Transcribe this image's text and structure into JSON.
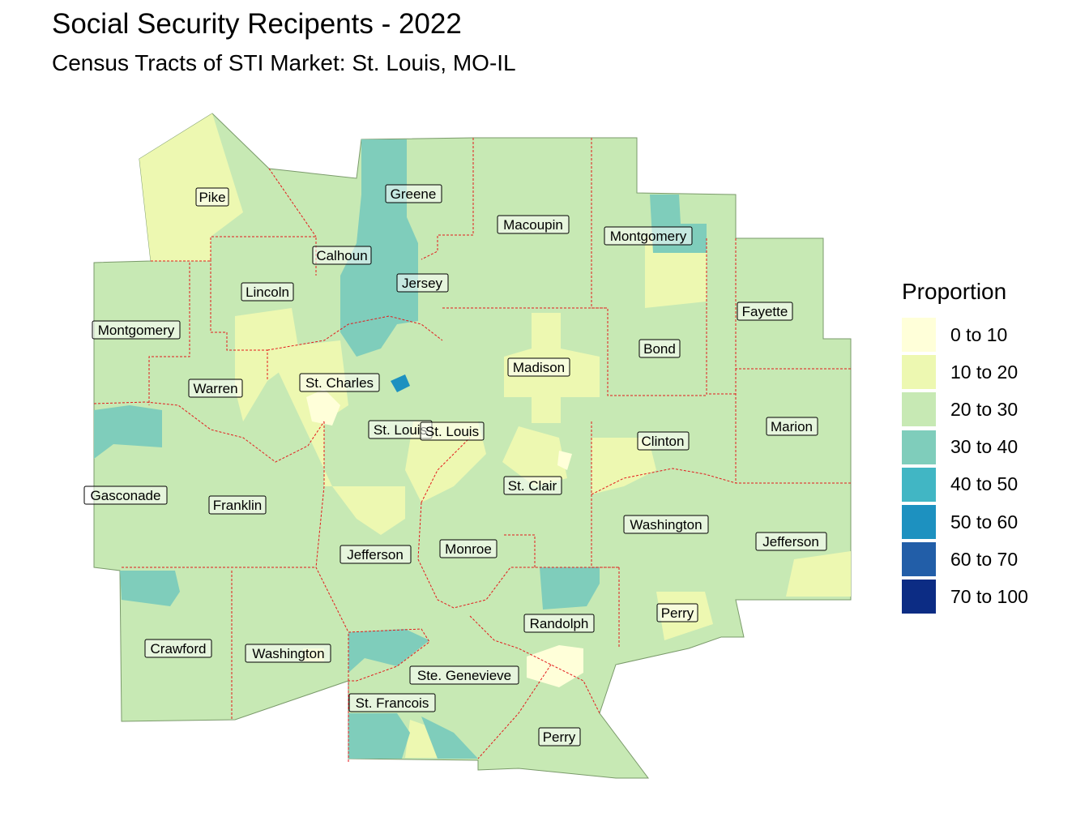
{
  "title": "Social Security Recipents - 2022",
  "subtitle": "Census Tracts of STI Market: St. Louis, MO-IL",
  "legend": {
    "title": "Proportion",
    "items": [
      {
        "label": "0 to 10",
        "color": "#ffffd9"
      },
      {
        "label": "10 to 20",
        "color": "#edf8b1"
      },
      {
        "label": "20 to 30",
        "color": "#c7e9b4"
      },
      {
        "label": "30 to 40",
        "color": "#7fcdbb"
      },
      {
        "label": "40 to 50",
        "color": "#41b6c4"
      },
      {
        "label": "50 to 60",
        "color": "#1d91c0"
      },
      {
        "label": "60 to 70",
        "color": "#225ea8"
      },
      {
        "label": "70 to 100",
        "color": "#0c2c84"
      }
    ]
  },
  "border_color": "#e31a1c",
  "counties": [
    {
      "name": "Pike"
    },
    {
      "name": "Greene"
    },
    {
      "name": "Macoupin"
    },
    {
      "name": "Montgomery"
    },
    {
      "name": "Calhoun"
    },
    {
      "name": "Lincoln"
    },
    {
      "name": "Jersey"
    },
    {
      "name": "Fayette"
    },
    {
      "name": "Montgomery"
    },
    {
      "name": "Bond"
    },
    {
      "name": "St. Charles"
    },
    {
      "name": "Madison"
    },
    {
      "name": "Warren"
    },
    {
      "name": "Marion"
    },
    {
      "name": "St. Louis"
    },
    {
      "name": "St. Louis"
    },
    {
      "name": "Clinton"
    },
    {
      "name": "St. Clair"
    },
    {
      "name": "Gasconade"
    },
    {
      "name": "Franklin"
    },
    {
      "name": "Washington"
    },
    {
      "name": "Jefferson"
    },
    {
      "name": "Jefferson"
    },
    {
      "name": "Monroe"
    },
    {
      "name": "Perry"
    },
    {
      "name": "Randolph"
    },
    {
      "name": "Crawford"
    },
    {
      "name": "Washington"
    },
    {
      "name": "Ste. Genevieve"
    },
    {
      "name": "St. Francois"
    },
    {
      "name": "Perry"
    }
  ]
}
